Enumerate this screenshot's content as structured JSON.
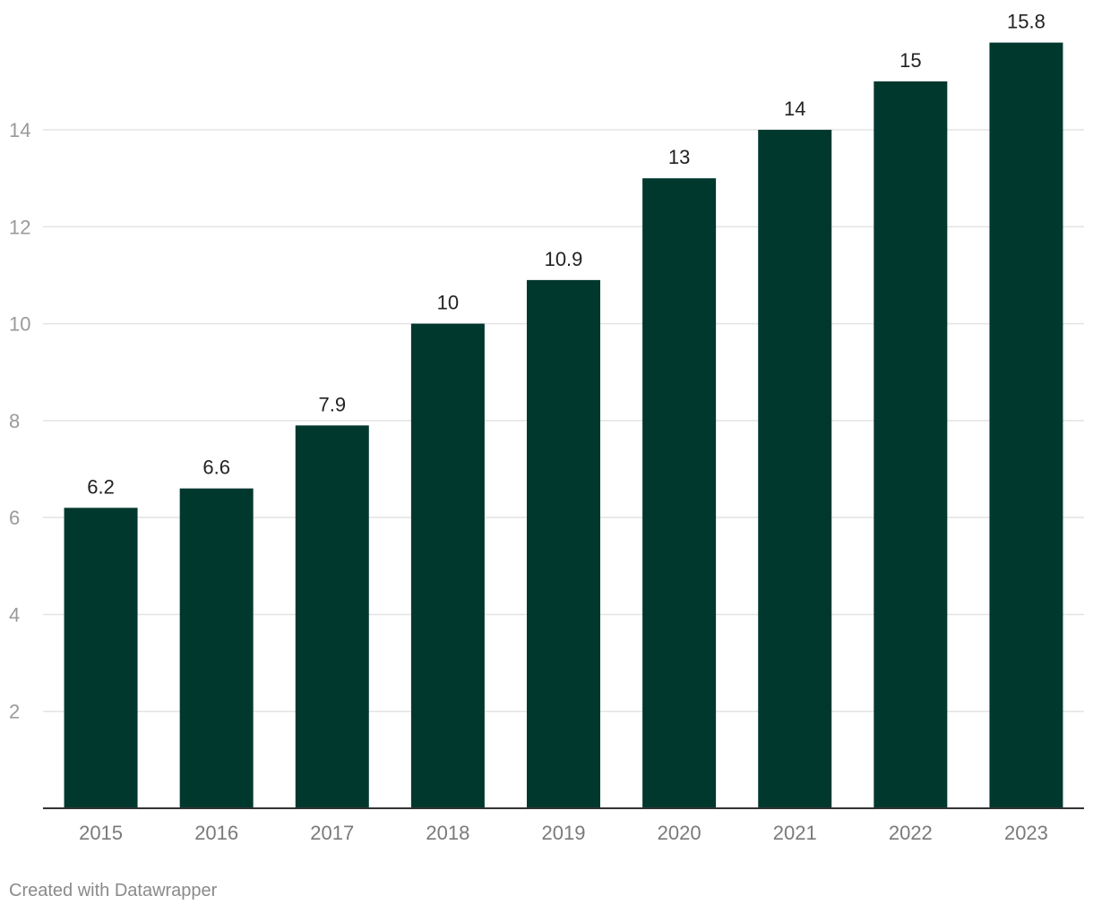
{
  "chart_data": {
    "type": "bar",
    "categories": [
      "2015",
      "2016",
      "2017",
      "2018",
      "2019",
      "2020",
      "2021",
      "2022",
      "2023"
    ],
    "values": [
      6.2,
      6.6,
      7.9,
      10,
      10.9,
      13,
      14,
      15,
      15.8
    ],
    "data_labels": [
      "6.2",
      "6.6",
      "7.9",
      "10",
      "10.9",
      "13",
      "14",
      "15",
      "15.8"
    ],
    "yticks": [
      2,
      4,
      6,
      8,
      10,
      12,
      14
    ],
    "ylim": [
      0,
      16
    ],
    "grid": true,
    "bar_color": "#01382e",
    "title": "",
    "xlabel": "",
    "ylabel": ""
  },
  "footer": {
    "credit": "Created with Datawrapper"
  }
}
